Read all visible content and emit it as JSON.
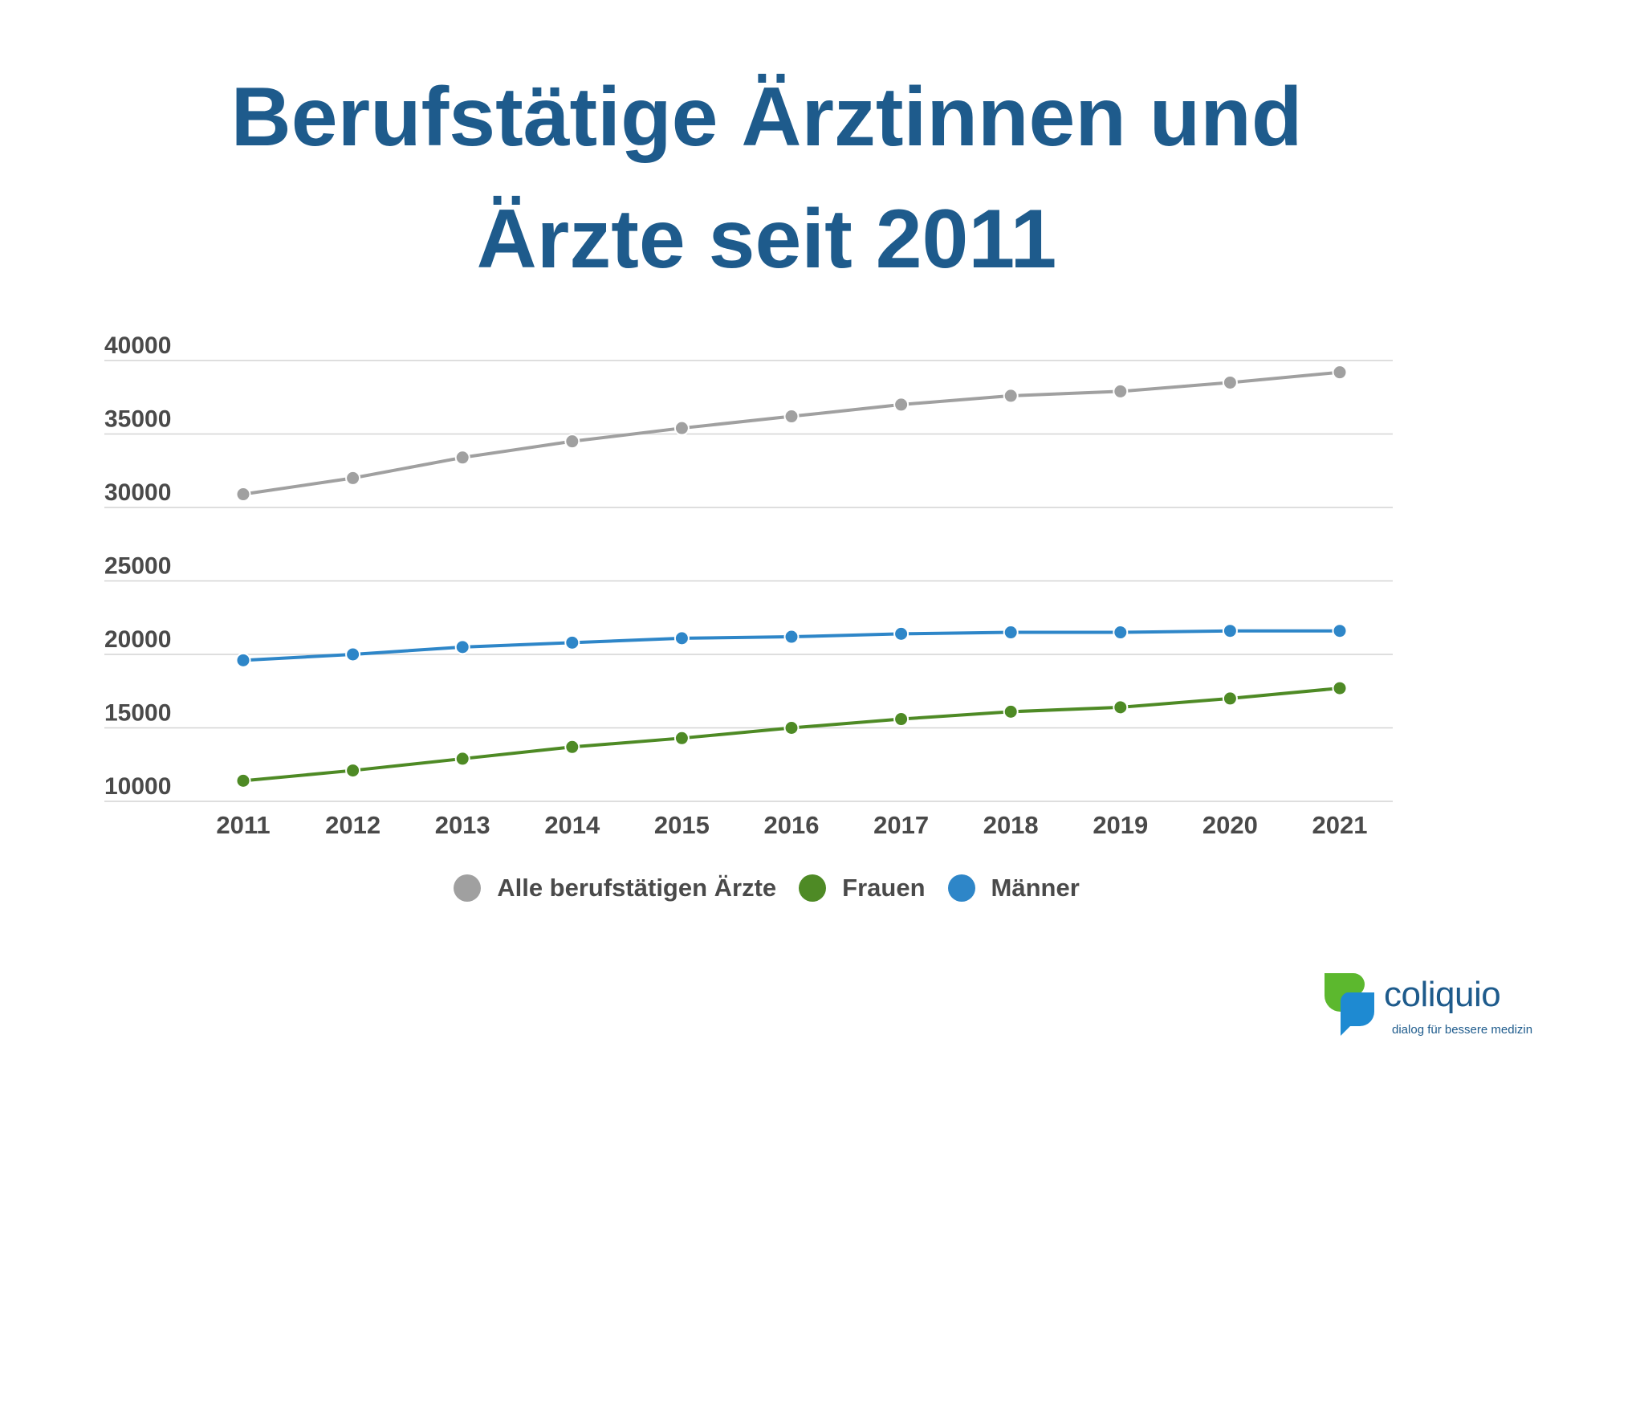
{
  "title": {
    "line1": "Berufstätige Ärztinnen und",
    "line2": "Ärzte seit 2011"
  },
  "chart_data": {
    "type": "line",
    "title": "Berufstätige Ärztinnen und Ärzte seit 2011",
    "xlabel": "",
    "ylabel": "",
    "ylim": [
      10000,
      40000
    ],
    "yticks": [
      "10000",
      "15000",
      "20000",
      "25000",
      "30000",
      "35000",
      "40000"
    ],
    "categories": [
      "2011",
      "2012",
      "2013",
      "2014",
      "2015",
      "2016",
      "2017",
      "2018",
      "2019",
      "2020",
      "2021"
    ],
    "series": [
      {
        "name": "Alle berufstätigen Ärzte",
        "color": "#a0a0a0",
        "values": [
          30900,
          32000,
          33400,
          34500,
          35400,
          36200,
          37000,
          37600,
          37900,
          38500,
          39200
        ]
      },
      {
        "name": "Frauen",
        "color": "#4e8a25",
        "values": [
          11400,
          12100,
          12900,
          13700,
          14300,
          15000,
          15600,
          16100,
          16400,
          17000,
          17700
        ]
      },
      {
        "name": "Männer",
        "color": "#2e86c8",
        "values": [
          19600,
          20000,
          20500,
          20800,
          21100,
          21200,
          21400,
          21500,
          21500,
          21600,
          21600
        ]
      }
    ],
    "grid": true,
    "legend_position": "bottom"
  },
  "logo": {
    "name": "coliquio",
    "tagline": "dialog für bessere medizin",
    "colors": {
      "leaf_green": "#5cb82e",
      "bubble_blue": "#1e8ad2"
    }
  }
}
